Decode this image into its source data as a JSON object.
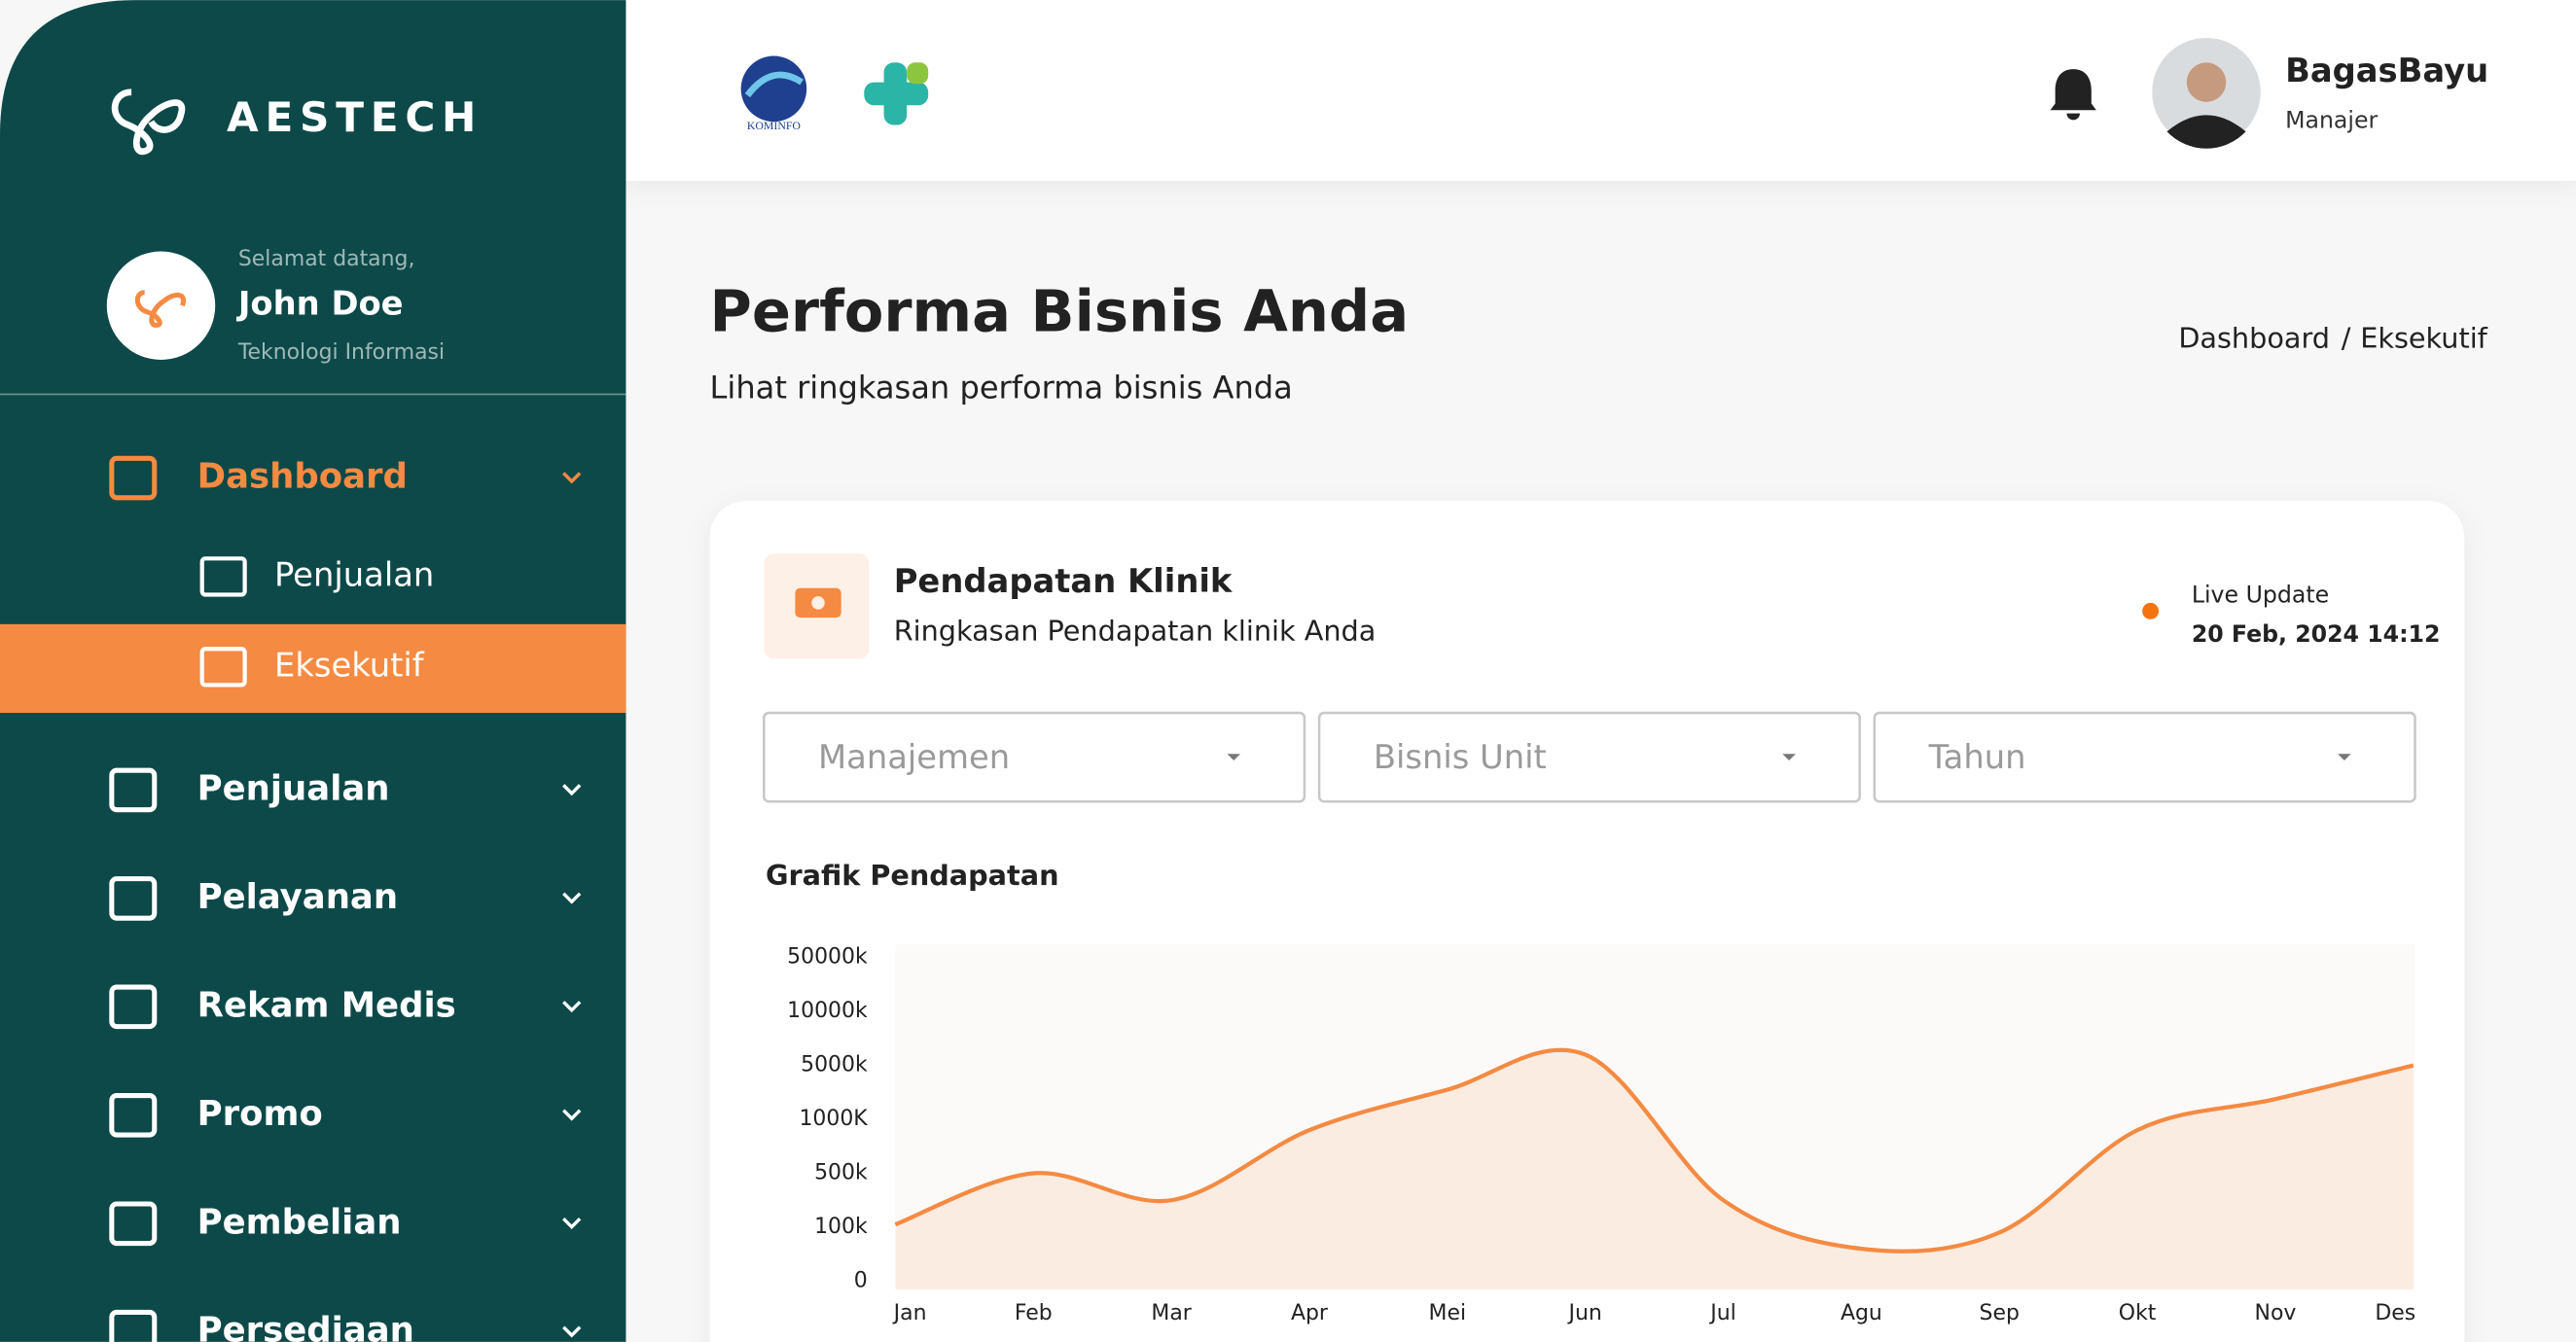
{
  "sidebar": {
    "brand": "AESTECH",
    "greeting": "Selamat datang,",
    "user_name": "John Doe",
    "department": "Teknologi Informasi",
    "menu": [
      {
        "label": "Dashboard",
        "children": [
          "Penjualan",
          "Eksekutif"
        ]
      },
      {
        "label": "Penjualan"
      },
      {
        "label": "Pelayanan"
      },
      {
        "label": "Rekam Medis"
      },
      {
        "label": "Promo"
      },
      {
        "label": "Pembelian"
      },
      {
        "label": "Persediaan"
      }
    ]
  },
  "header": {
    "logo_text": "KOMINFO",
    "user_name": "BagasBayu",
    "role": "Manajer"
  },
  "page": {
    "title": "Performa Bisnis Anda",
    "subtitle": "Lihat ringkasan performa bisnis Anda",
    "breadcrumb": [
      "Dashboard",
      "Eksekutif"
    ],
    "breadcrumb_separator": "/"
  },
  "card": {
    "title": "Pendapatan Klinik",
    "subtitle": "Ringkasan Pendapatan klinik Anda",
    "status": "Live Update",
    "timestamp": "20 Feb, 2024 14:12",
    "filters": [
      "Manajemen",
      "Bisnis Unit",
      "Tahun"
    ]
  },
  "chart_data": {
    "type": "area",
    "title": "Grafik Pendapatan",
    "categories": [
      "Jan",
      "Feb",
      "Mar",
      "Apr",
      "Mei",
      "Jun",
      "Jul",
      "Agu",
      "Sep",
      "Okt",
      "Nov",
      "Des"
    ],
    "values": [
      120,
      500,
      300,
      900,
      3200,
      6000,
      300,
      60,
      90,
      900,
      2500,
      5000
    ],
    "color": "#f58a42",
    "ylim": [
      0,
      50000
    ],
    "yticks": [
      0,
      {
        "value": 100,
        "label": "100k"
      },
      {
        "value": 500,
        "label": "500k"
      },
      {
        "value": 1000,
        "label": "1000K"
      },
      {
        "value": 5000,
        "label": "5000k"
      },
      {
        "value": 10000,
        "label": "10000k"
      },
      {
        "value": 50000,
        "label": "50000k"
      }
    ]
  }
}
